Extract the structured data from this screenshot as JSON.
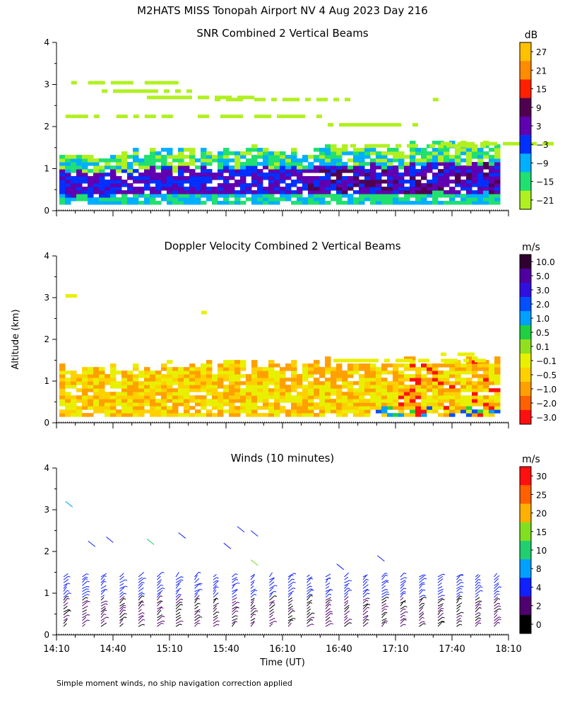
{
  "figure": {
    "title": "M2HATS MISS Tonopah Airport NV   4 Aug 2023 Day 216",
    "xlabel": "Time (UT)",
    "shared_ylabel": "Altitude (km)",
    "footnote": "Simple moment winds, no ship navigation correction applied"
  },
  "chart_data": [
    {
      "type": "heatmap",
      "title": "SNR Combined 2 Vertical Beams",
      "x_ticks": [
        "14:10",
        "14:40",
        "15:10",
        "15:40",
        "16:10",
        "16:40",
        "17:10",
        "17:40",
        "18:10"
      ],
      "y_ticks": [
        0,
        1,
        2,
        3,
        4
      ],
      "ylim": [
        0,
        4
      ],
      "xlim": [
        "14:10",
        "18:10"
      ],
      "colorbar": {
        "unit": "dB",
        "labels": [
          "27",
          "21",
          "15",
          "9",
          "3",
          "−3",
          "−9",
          "−15",
          "−21"
        ],
        "colors": [
          "#ffc000",
          "#ff8c00",
          "#ff2000",
          "#500050",
          "#6000b0",
          "#0030ff",
          "#00b0ff",
          "#20e070",
          "#b0f020"
        ]
      }
    },
    {
      "type": "heatmap",
      "title": "Doppler Velocity Combined 2 Vertical Beams",
      "x_ticks": [
        "14:10",
        "14:40",
        "15:10",
        "15:40",
        "16:10",
        "16:40",
        "17:10",
        "17:40",
        "18:10"
      ],
      "y_ticks": [
        0,
        1,
        2,
        3,
        4
      ],
      "ylim": [
        0,
        4
      ],
      "xlim": [
        "14:10",
        "18:10"
      ],
      "colorbar": {
        "unit": "m/s",
        "labels": [
          "10.0",
          "5.0",
          "3.0",
          "2.0",
          "1.0",
          "0.5",
          "0.1",
          "−0.1",
          "−0.5",
          "−1.0",
          "−2.0",
          "−3.0"
        ],
        "colors": [
          "#300030",
          "#5000a0",
          "#3010e0",
          "#0050ff",
          "#00a0ff",
          "#20d040",
          "#90e020",
          "#e8f000",
          "#ffd000",
          "#ffa000",
          "#ff6000",
          "#ff1010"
        ]
      }
    },
    {
      "type": "scatter",
      "title": "Winds (10 minutes)",
      "x_ticks": [
        "14:10",
        "14:40",
        "15:10",
        "15:40",
        "16:10",
        "16:40",
        "17:10",
        "17:40",
        "18:10"
      ],
      "y_ticks": [
        0,
        1,
        2,
        3,
        4
      ],
      "ylim": [
        0,
        4
      ],
      "xlim": [
        "14:10",
        "18:10"
      ],
      "colorbar": {
        "unit": "m/s",
        "labels": [
          "30",
          "25",
          "20",
          "15",
          "10",
          "8",
          "4",
          "2",
          "0"
        ],
        "colors": [
          "#ff1010",
          "#ff6000",
          "#ffb000",
          "#80e020",
          "#20d070",
          "#00a0ff",
          "#1020ff",
          "#500070",
          "#000000"
        ]
      }
    }
  ]
}
